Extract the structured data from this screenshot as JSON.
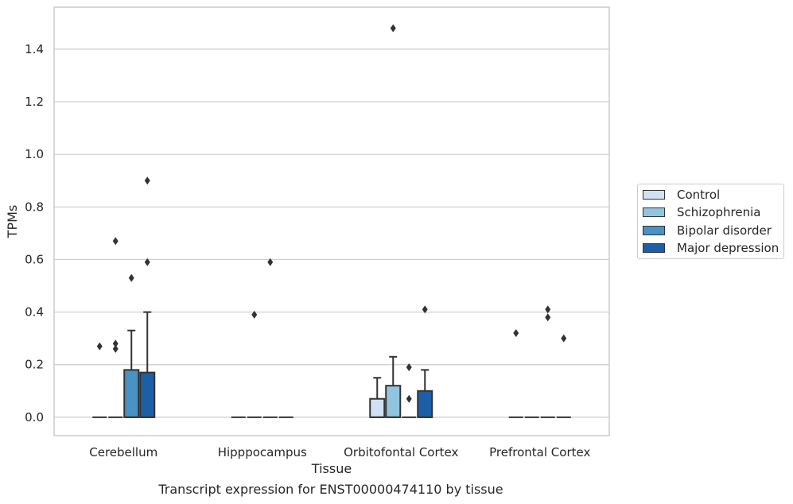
{
  "chart_data": {
    "type": "box",
    "xlabel": "Tissue",
    "ylabel": "TPMs",
    "ylim": [
      -0.07,
      1.56
    ],
    "yticks": [
      "0.0",
      "0.2",
      "0.4",
      "0.6",
      "0.8",
      "1.0",
      "1.2",
      "1.4"
    ],
    "grid": "horizontal",
    "legend_position": "right",
    "categories": [
      "Cerebellum",
      "Hipppocampus",
      "Orbitofontal Cortex",
      "Prefrontal Cortex"
    ],
    "series": [
      {
        "name": "Control",
        "color": "#cfe1f2",
        "boxes": [
          {
            "q1": 0,
            "median": 0,
            "q3": 0,
            "whisker_low": 0,
            "whisker_high": 0,
            "outliers": [
              0.27
            ]
          },
          {
            "q1": 0,
            "median": 0,
            "q3": 0,
            "whisker_low": 0,
            "whisker_high": 0,
            "outliers": []
          },
          {
            "q1": 0,
            "median": 0,
            "q3": 0.07,
            "whisker_low": 0,
            "whisker_high": 0.15,
            "outliers": []
          },
          {
            "q1": 0,
            "median": 0,
            "q3": 0,
            "whisker_low": 0,
            "whisker_high": 0,
            "outliers": [
              0.32
            ]
          }
        ]
      },
      {
        "name": "Schizophrenia",
        "color": "#93c4de",
        "boxes": [
          {
            "q1": 0,
            "median": 0,
            "q3": 0,
            "whisker_low": 0,
            "whisker_high": 0,
            "outliers": [
              0.26,
              0.28,
              0.67
            ]
          },
          {
            "q1": 0,
            "median": 0,
            "q3": 0,
            "whisker_low": 0,
            "whisker_high": 0,
            "outliers": [
              0.39
            ]
          },
          {
            "q1": 0,
            "median": 0,
            "q3": 0.12,
            "whisker_low": 0,
            "whisker_high": 0.23,
            "outliers": [
              1.48
            ]
          },
          {
            "q1": 0,
            "median": 0,
            "q3": 0,
            "whisker_low": 0,
            "whisker_high": 0,
            "outliers": []
          }
        ]
      },
      {
        "name": "Bipolar disorder",
        "color": "#4a91c4",
        "boxes": [
          {
            "q1": 0,
            "median": 0,
            "q3": 0.18,
            "whisker_low": 0,
            "whisker_high": 0.33,
            "outliers": [
              0.53
            ]
          },
          {
            "q1": 0,
            "median": 0,
            "q3": 0,
            "whisker_low": 0,
            "whisker_high": 0,
            "outliers": [
              0.59
            ]
          },
          {
            "q1": 0,
            "median": 0,
            "q3": 0,
            "whisker_low": 0,
            "whisker_high": 0,
            "outliers": [
              0.07,
              0.19
            ]
          },
          {
            "q1": 0,
            "median": 0,
            "q3": 0,
            "whisker_low": 0,
            "whisker_high": 0,
            "outliers": [
              0.41,
              0.38
            ]
          }
        ]
      },
      {
        "name": "Major depression",
        "color": "#1c5fa6",
        "boxes": [
          {
            "q1": 0,
            "median": 0,
            "q3": 0.17,
            "whisker_low": 0,
            "whisker_high": 0.4,
            "outliers": [
              0.59,
              0.9
            ]
          },
          {
            "q1": 0,
            "median": 0,
            "q3": 0,
            "whisker_low": 0,
            "whisker_high": 0,
            "outliers": []
          },
          {
            "q1": 0,
            "median": 0,
            "q3": 0.1,
            "whisker_low": 0,
            "whisker_high": 0.18,
            "outliers": [
              0.41
            ]
          },
          {
            "q1": 0,
            "median": 0,
            "q3": 0,
            "whisker_low": 0,
            "whisker_high": 0,
            "outliers": [
              0.3
            ]
          }
        ]
      }
    ]
  },
  "caption": "Transcript expression for ENST00000474110 by tissue"
}
